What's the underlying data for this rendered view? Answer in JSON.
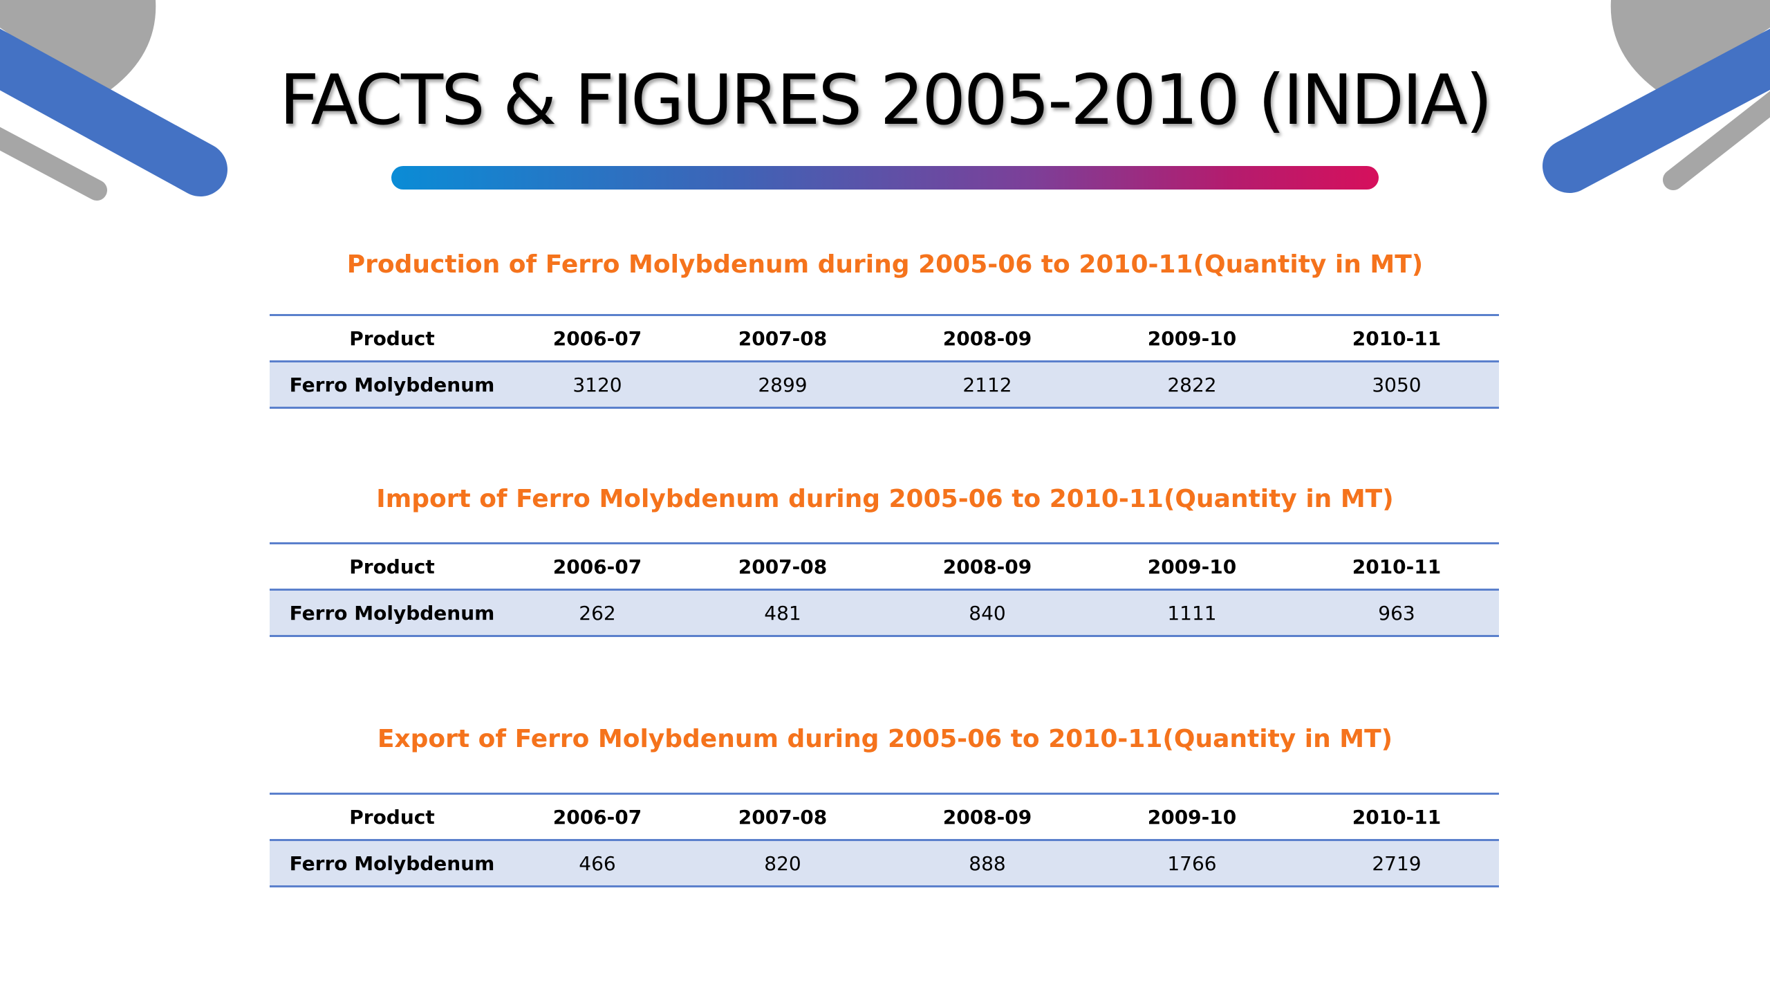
{
  "title": "FACTS & FIGURES 2005-2010 (INDIA)",
  "colors": {
    "heading_orange": "#f5731c",
    "table_rule_blue": "#5b80cc",
    "row_fill": "#dae2f2",
    "deco_blue": "#4472c4",
    "deco_gray": "#a6a6a6",
    "bar_start": "#0a8cd6",
    "bar_end": "#d6105c"
  },
  "tables": [
    {
      "heading": "Production of Ferro Molybdenum during 2005-06 to 2010-11(Quantity in MT)",
      "columns": [
        "Product",
        "2006-07",
        "2007-08",
        "2008-09",
        "2009-10",
        "2010-11"
      ],
      "row": {
        "product": "Ferro Molybdenum",
        "values": [
          "3120",
          "2899",
          "2112",
          "2822",
          "3050"
        ]
      }
    },
    {
      "heading": "Import of Ferro Molybdenum during 2005-06 to 2010-11(Quantity in MT)",
      "columns": [
        "Product",
        "2006-07",
        "2007-08",
        "2008-09",
        "2009-10",
        "2010-11"
      ],
      "row": {
        "product": "Ferro Molybdenum",
        "values": [
          "262",
          "481",
          "840",
          "1111",
          "963"
        ]
      }
    },
    {
      "heading": "Export of Ferro Molybdenum during 2005-06 to 2010-11(Quantity in MT)",
      "columns": [
        "Product",
        "2006-07",
        "2007-08",
        "2008-09",
        "2009-10",
        "2010-11"
      ],
      "row": {
        "product": "Ferro Molybdenum",
        "values": [
          "466",
          "820",
          "888",
          "1766",
          "2719"
        ]
      }
    }
  ]
}
